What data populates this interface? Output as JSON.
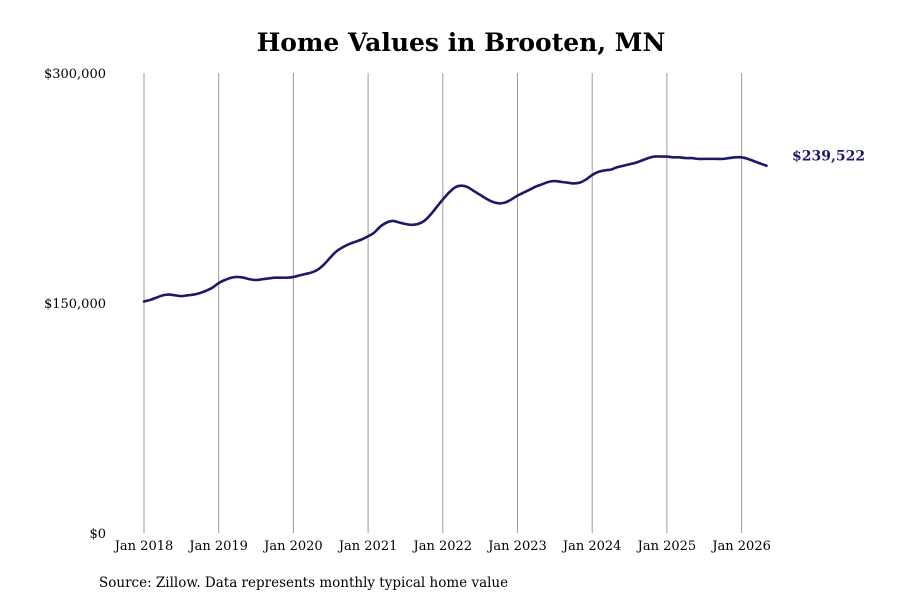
{
  "chart_data": {
    "type": "line",
    "title": "Home Values in Brooten, MN",
    "ylim": [
      0,
      300000
    ],
    "y_ticks": [
      {
        "value": 0,
        "label": "$0"
      },
      {
        "value": 150000,
        "label": "$150,000"
      },
      {
        "value": 300000,
        "label": "$300,000"
      }
    ],
    "x_ticks": [
      {
        "date": "2018-01",
        "label": "Jan 2018"
      },
      {
        "date": "2019-01",
        "label": "Jan 2019"
      },
      {
        "date": "2020-01",
        "label": "Jan 2020"
      },
      {
        "date": "2021-01",
        "label": "Jan 2021"
      },
      {
        "date": "2022-01",
        "label": "Jan 2022"
      },
      {
        "date": "2023-01",
        "label": "Jan 2023"
      },
      {
        "date": "2024-01",
        "label": "Jan 2024"
      },
      {
        "date": "2025-01",
        "label": "Jan 2025"
      },
      {
        "date": "2026-01",
        "label": "Jan 2026"
      }
    ],
    "grid": "vertical",
    "line_color": "#1a1a66",
    "end_label": "$239,522",
    "series": [
      {
        "points": [
          [
            "2018-01",
            151000
          ],
          [
            "2018-02",
            152000
          ],
          [
            "2018-03",
            153500
          ],
          [
            "2018-04",
            155000
          ],
          [
            "2018-05",
            155500
          ],
          [
            "2018-06",
            155000
          ],
          [
            "2018-07",
            154500
          ],
          [
            "2018-08",
            155000
          ],
          [
            "2018-09",
            155500
          ],
          [
            "2018-10",
            156500
          ],
          [
            "2018-11",
            158000
          ],
          [
            "2018-12",
            160000
          ],
          [
            "2019-01",
            163000
          ],
          [
            "2019-02",
            165000
          ],
          [
            "2019-03",
            166500
          ],
          [
            "2019-04",
            167000
          ],
          [
            "2019-05",
            166500
          ],
          [
            "2019-06",
            165500
          ],
          [
            "2019-07",
            165000
          ],
          [
            "2019-08",
            165500
          ],
          [
            "2019-09",
            166000
          ],
          [
            "2019-10",
            166500
          ],
          [
            "2019-11",
            166500
          ],
          [
            "2019-12",
            166500
          ],
          [
            "2020-01",
            167000
          ],
          [
            "2020-02",
            168000
          ],
          [
            "2020-03",
            169000
          ],
          [
            "2020-04",
            170000
          ],
          [
            "2020-05",
            172000
          ],
          [
            "2020-06",
            175500
          ],
          [
            "2020-07",
            180000
          ],
          [
            "2020-08",
            184000
          ],
          [
            "2020-09",
            186500
          ],
          [
            "2020-10",
            188500
          ],
          [
            "2020-11",
            190000
          ],
          [
            "2020-12",
            191500
          ],
          [
            "2021-01",
            193500
          ],
          [
            "2021-02",
            196000
          ],
          [
            "2021-03",
            200000
          ],
          [
            "2021-04",
            202500
          ],
          [
            "2021-05",
            203500
          ],
          [
            "2021-06",
            202500
          ],
          [
            "2021-07",
            201500
          ],
          [
            "2021-08",
            201000
          ],
          [
            "2021-09",
            201500
          ],
          [
            "2021-10",
            203500
          ],
          [
            "2021-11",
            207500
          ],
          [
            "2021-12",
            212500
          ],
          [
            "2022-01",
            217500
          ],
          [
            "2022-02",
            222000
          ],
          [
            "2022-03",
            225500
          ],
          [
            "2022-04",
            226500
          ],
          [
            "2022-05",
            225500
          ],
          [
            "2022-06",
            223000
          ],
          [
            "2022-07",
            220500
          ],
          [
            "2022-08",
            218000
          ],
          [
            "2022-09",
            216000
          ],
          [
            "2022-10",
            215000
          ],
          [
            "2022-11",
            215500
          ],
          [
            "2022-12",
            217500
          ],
          [
            "2023-01",
            220000
          ],
          [
            "2023-02",
            222000
          ],
          [
            "2023-03",
            224000
          ],
          [
            "2023-04",
            226000
          ],
          [
            "2023-05",
            227500
          ],
          [
            "2023-06",
            229000
          ],
          [
            "2023-07",
            229500
          ],
          [
            "2023-08",
            229000
          ],
          [
            "2023-09",
            228500
          ],
          [
            "2023-10",
            228000
          ],
          [
            "2023-11",
            228500
          ],
          [
            "2023-12",
            230500
          ],
          [
            "2024-01",
            233500
          ],
          [
            "2024-02",
            235500
          ],
          [
            "2024-03",
            236500
          ],
          [
            "2024-04",
            237000
          ],
          [
            "2024-05",
            238500
          ],
          [
            "2024-06",
            239500
          ],
          [
            "2024-07",
            240500
          ],
          [
            "2024-08",
            241500
          ],
          [
            "2024-09",
            243000
          ],
          [
            "2024-10",
            244500
          ],
          [
            "2024-11",
            245500
          ],
          [
            "2024-12",
            245500
          ],
          [
            "2025-01",
            245500
          ],
          [
            "2025-02",
            245000
          ],
          [
            "2025-03",
            245000
          ],
          [
            "2025-04",
            244500
          ],
          [
            "2025-05",
            244500
          ],
          [
            "2025-06",
            244000
          ],
          [
            "2025-07",
            244000
          ],
          [
            "2025-08",
            244000
          ],
          [
            "2025-09",
            244000
          ],
          [
            "2025-10",
            244000
          ],
          [
            "2025-11",
            244500
          ],
          [
            "2025-12",
            245000
          ],
          [
            "2026-01",
            245000
          ],
          [
            "2026-02",
            244000
          ],
          [
            "2026-03",
            242500
          ],
          [
            "2026-04",
            241000
          ],
          [
            "2026-05",
            239522
          ]
        ]
      }
    ]
  },
  "source_text": "Source: Zillow. Data represents monthly typical home value"
}
